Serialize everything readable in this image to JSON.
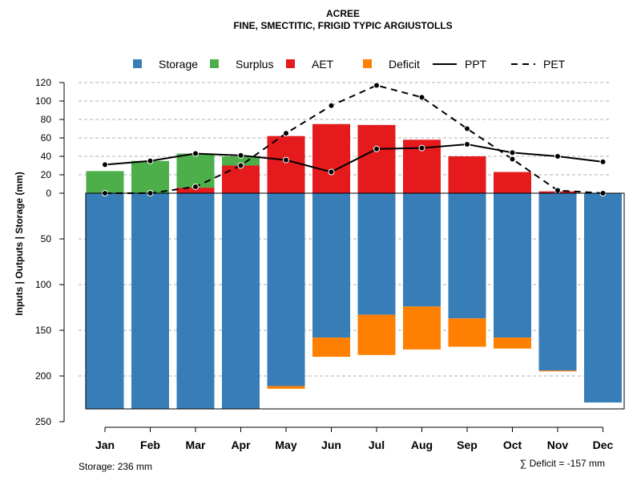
{
  "chart_data": {
    "type": "bar",
    "title": "ACREE",
    "subtitle": "FINE, SMECTITIC, FRIGID TYPIC ARGIUSTOLLS",
    "ylabel": "Inputs | Outputs | Storage    (mm)",
    "categories": [
      "Jan",
      "Feb",
      "Mar",
      "Apr",
      "May",
      "Jun",
      "Jul",
      "Aug",
      "Sep",
      "Oct",
      "Nov",
      "Dec"
    ],
    "upper_yticks": [
      0,
      20,
      40,
      60,
      80,
      100,
      120
    ],
    "lower_yticks": [
      50,
      100,
      150,
      200,
      250
    ],
    "ylim_upper": [
      0,
      120
    ],
    "ylim_lower": [
      0,
      250
    ],
    "legend": [
      {
        "key": "storage",
        "label": "Storage",
        "color": "#377EB8",
        "kind": "box"
      },
      {
        "key": "surplus",
        "label": "Surplus",
        "color": "#4DAF4A",
        "kind": "box"
      },
      {
        "key": "aet",
        "label": "AET",
        "color": "#E41A1C",
        "kind": "box"
      },
      {
        "key": "deficit",
        "label": "Deficit",
        "color": "#FF7F00",
        "kind": "box"
      },
      {
        "key": "ppt",
        "label": "PPT",
        "color": "#000000",
        "kind": "solid"
      },
      {
        "key": "pet",
        "label": "PET",
        "color": "#000000",
        "kind": "dashed"
      }
    ],
    "series": {
      "aet": [
        0,
        0,
        6,
        30,
        62,
        75,
        74,
        58,
        40,
        23,
        2,
        0
      ],
      "surplus": [
        24,
        35,
        37,
        10,
        0,
        0,
        0,
        0,
        0,
        0,
        0,
        0
      ],
      "storage": [
        236,
        236,
        236,
        236,
        211,
        158,
        133,
        124,
        137,
        158,
        194,
        229
      ],
      "deficit": [
        0,
        0,
        0,
        0,
        3,
        21,
        44,
        47,
        31,
        12,
        1,
        0
      ],
      "ppt": [
        31,
        35,
        43,
        41,
        36,
        23,
        48,
        49,
        53,
        44,
        40,
        34
      ],
      "pet": [
        0,
        0,
        7,
        30,
        65,
        95,
        117,
        104,
        70,
        37,
        3,
        0
      ]
    },
    "storage_capacity": 236,
    "storage_note": "Storage: 236 mm",
    "deficit_note": "∑ Deficit = -157 mm"
  }
}
